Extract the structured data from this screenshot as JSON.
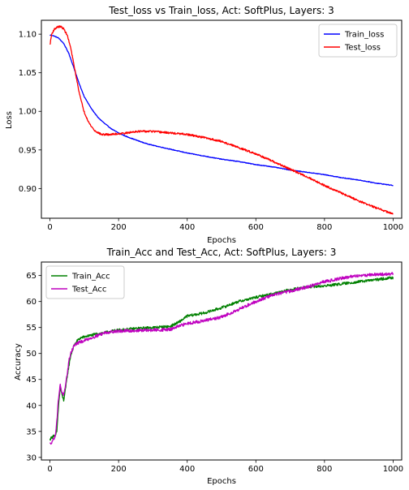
{
  "chart_data": [
    {
      "type": "line",
      "title": "Test_loss vs Train_loss, Act: SoftPlus, Layers: 3",
      "xlabel": "Epochs",
      "ylabel": "Loss",
      "xlim": [
        -25,
        1025
      ],
      "ylim": [
        0.8615,
        1.118
      ],
      "xticks": [
        0,
        200,
        400,
        600,
        800,
        1000
      ],
      "yticks": [
        0.9,
        0.95,
        1.0,
        1.05,
        1.1
      ],
      "ytick_labels": [
        "0.90",
        "0.95",
        "1.00",
        "1.05",
        "1.10"
      ],
      "legend": "top-right",
      "grid": false,
      "series": [
        {
          "name": "Train_loss",
          "color": "#0000ff",
          "noise": 0.0004,
          "x": [
            0,
            10,
            25,
            40,
            55,
            70,
            85,
            100,
            120,
            140,
            160,
            180,
            200,
            225,
            250,
            275,
            300,
            350,
            400,
            450,
            500,
            550,
            600,
            650,
            700,
            750,
            800,
            850,
            900,
            950,
            1000
          ],
          "y": [
            1.099,
            1.098,
            1.095,
            1.088,
            1.075,
            1.056,
            1.036,
            1.019,
            1.004,
            0.992,
            0.984,
            0.977,
            0.972,
            0.967,
            0.963,
            0.959,
            0.956,
            0.951,
            0.946,
            0.942,
            0.938,
            0.935,
            0.931,
            0.928,
            0.924,
            0.921,
            0.918,
            0.914,
            0.911,
            0.907,
            0.904
          ]
        },
        {
          "name": "Test_loss",
          "color": "#ff0000",
          "noise": 0.0012,
          "x": [
            0,
            5,
            12,
            20,
            30,
            40,
            50,
            60,
            70,
            80,
            90,
            100,
            115,
            130,
            150,
            175,
            200,
            225,
            250,
            275,
            300,
            325,
            350,
            375,
            400,
            450,
            500,
            550,
            600,
            650,
            700,
            750,
            800,
            850,
            900,
            950,
            1000
          ],
          "y": [
            1.086,
            1.1,
            1.106,
            1.109,
            1.11,
            1.107,
            1.099,
            1.083,
            1.06,
            1.036,
            1.015,
            0.999,
            0.984,
            0.975,
            0.97,
            0.97,
            0.971,
            0.972,
            0.974,
            0.974,
            0.974,
            0.973,
            0.972,
            0.971,
            0.97,
            0.966,
            0.961,
            0.953,
            0.945,
            0.935,
            0.925,
            0.915,
            0.904,
            0.894,
            0.884,
            0.875,
            0.867
          ]
        }
      ]
    },
    {
      "type": "line",
      "title": "Train_Acc and Test_Acc, Act: SoftPlus, Layers: 3",
      "xlabel": "Epochs",
      "ylabel": "Accuracy",
      "xlim": [
        -25,
        1025
      ],
      "ylim": [
        29.5,
        67.6
      ],
      "xticks": [
        0,
        200,
        400,
        600,
        800,
        1000
      ],
      "yticks": [
        30,
        35,
        40,
        45,
        50,
        55,
        60,
        65
      ],
      "ytick_labels": [
        "30",
        "35",
        "40",
        "45",
        "50",
        "55",
        "60",
        "65"
      ],
      "legend": "top-left",
      "grid": false,
      "series": [
        {
          "name": "Train_Acc",
          "color": "#008000",
          "noise": 0.25,
          "x": [
            0,
            5,
            10,
            15,
            20,
            25,
            30,
            35,
            40,
            45,
            50,
            55,
            60,
            70,
            80,
            90,
            100,
            120,
            140,
            160,
            180,
            200,
            250,
            300,
            350,
            375,
            400,
            450,
            500,
            550,
            600,
            650,
            700,
            750,
            800,
            850,
            900,
            950,
            1000
          ],
          "y": [
            33.5,
            33.8,
            34.2,
            34.0,
            35.0,
            40.0,
            43.5,
            42.0,
            41.0,
            43.0,
            45.5,
            47.5,
            49.5,
            51.5,
            52.5,
            53.0,
            53.2,
            53.5,
            53.8,
            54.0,
            54.3,
            54.5,
            54.8,
            55.0,
            55.2,
            56.0,
            57.2,
            57.8,
            58.8,
            60.0,
            60.8,
            61.5,
            62.3,
            62.8,
            63.0,
            63.4,
            63.8,
            64.2,
            64.6
          ]
        },
        {
          "name": "Test_Acc",
          "color": "#bf00bf",
          "noise": 0.3,
          "x": [
            0,
            5,
            10,
            15,
            20,
            25,
            30,
            35,
            40,
            45,
            50,
            55,
            60,
            70,
            80,
            90,
            100,
            120,
            140,
            160,
            180,
            200,
            250,
            300,
            350,
            375,
            400,
            450,
            500,
            550,
            600,
            650,
            700,
            750,
            800,
            850,
            900,
            950,
            1000
          ],
          "y": [
            32.5,
            33.0,
            33.5,
            34.0,
            37.0,
            41.5,
            44.0,
            42.5,
            42.0,
            43.5,
            46.0,
            48.5,
            50.0,
            51.5,
            52.0,
            52.2,
            52.5,
            53.0,
            53.5,
            54.0,
            54.2,
            54.3,
            54.4,
            54.5,
            54.6,
            55.2,
            55.8,
            56.3,
            57.0,
            58.5,
            60.0,
            61.3,
            62.0,
            62.8,
            63.8,
            64.5,
            65.0,
            65.2,
            65.3
          ]
        }
      ]
    }
  ]
}
